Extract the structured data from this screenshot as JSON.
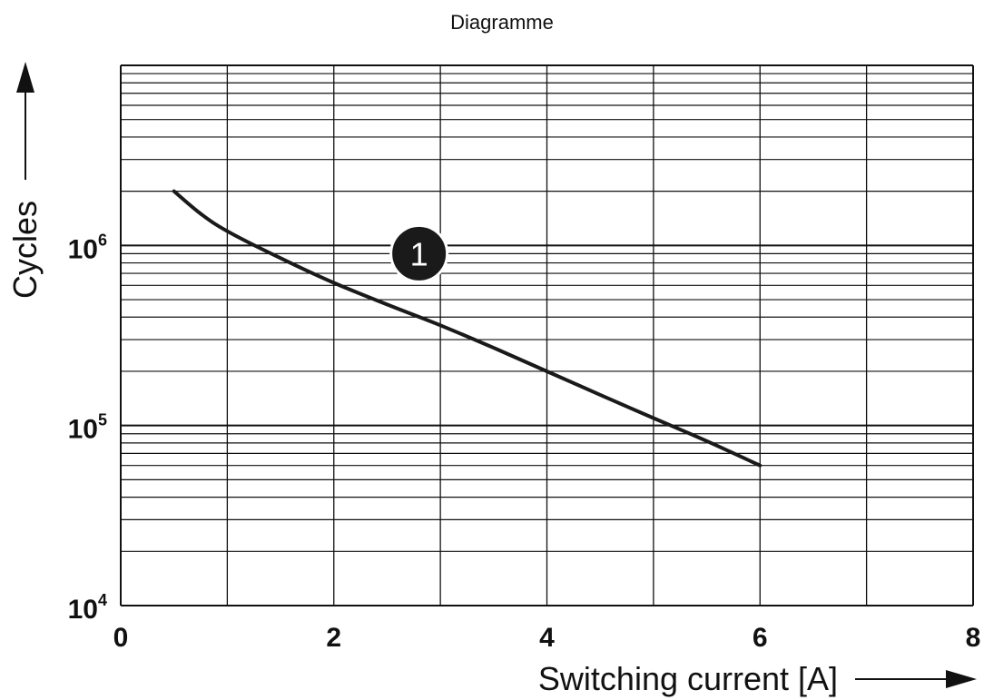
{
  "chart_data": {
    "type": "line",
    "title": "Diagramme",
    "xlabel": "Switching current [A]",
    "ylabel": "Cycles",
    "x_scale": "linear",
    "y_scale": "log",
    "xlim": [
      0,
      8
    ],
    "ylim": [
      10000,
      10000000
    ],
    "x_ticks": [
      0,
      2,
      4,
      6,
      8
    ],
    "x_tick_labels": [
      "0",
      "2",
      "4",
      "6",
      "8"
    ],
    "y_ticks": [
      10000,
      100000,
      1000000
    ],
    "y_tick_labels": [
      {
        "base": "10",
        "exp": "4"
      },
      {
        "base": "10",
        "exp": "5"
      },
      {
        "base": "10",
        "exp": "6"
      }
    ],
    "grid": true,
    "series": [
      {
        "label_marker": "1",
        "color": "#1a1a1a",
        "points": [
          [
            0.5,
            2000000
          ],
          [
            0.75,
            1500000
          ],
          [
            1.0,
            1200000
          ],
          [
            1.5,
            850000
          ],
          [
            2.0,
            620000
          ],
          [
            2.5,
            470000
          ],
          [
            3.0,
            360000
          ],
          [
            3.5,
            270000
          ],
          [
            4.0,
            200000
          ],
          [
            4.5,
            148000
          ],
          [
            5.0,
            110000
          ],
          [
            5.5,
            82000
          ],
          [
            6.0,
            60000
          ]
        ]
      }
    ],
    "annotations": [
      {
        "text": "1",
        "x": 2.8,
        "y": 900000,
        "style": "filled-circle"
      }
    ]
  }
}
